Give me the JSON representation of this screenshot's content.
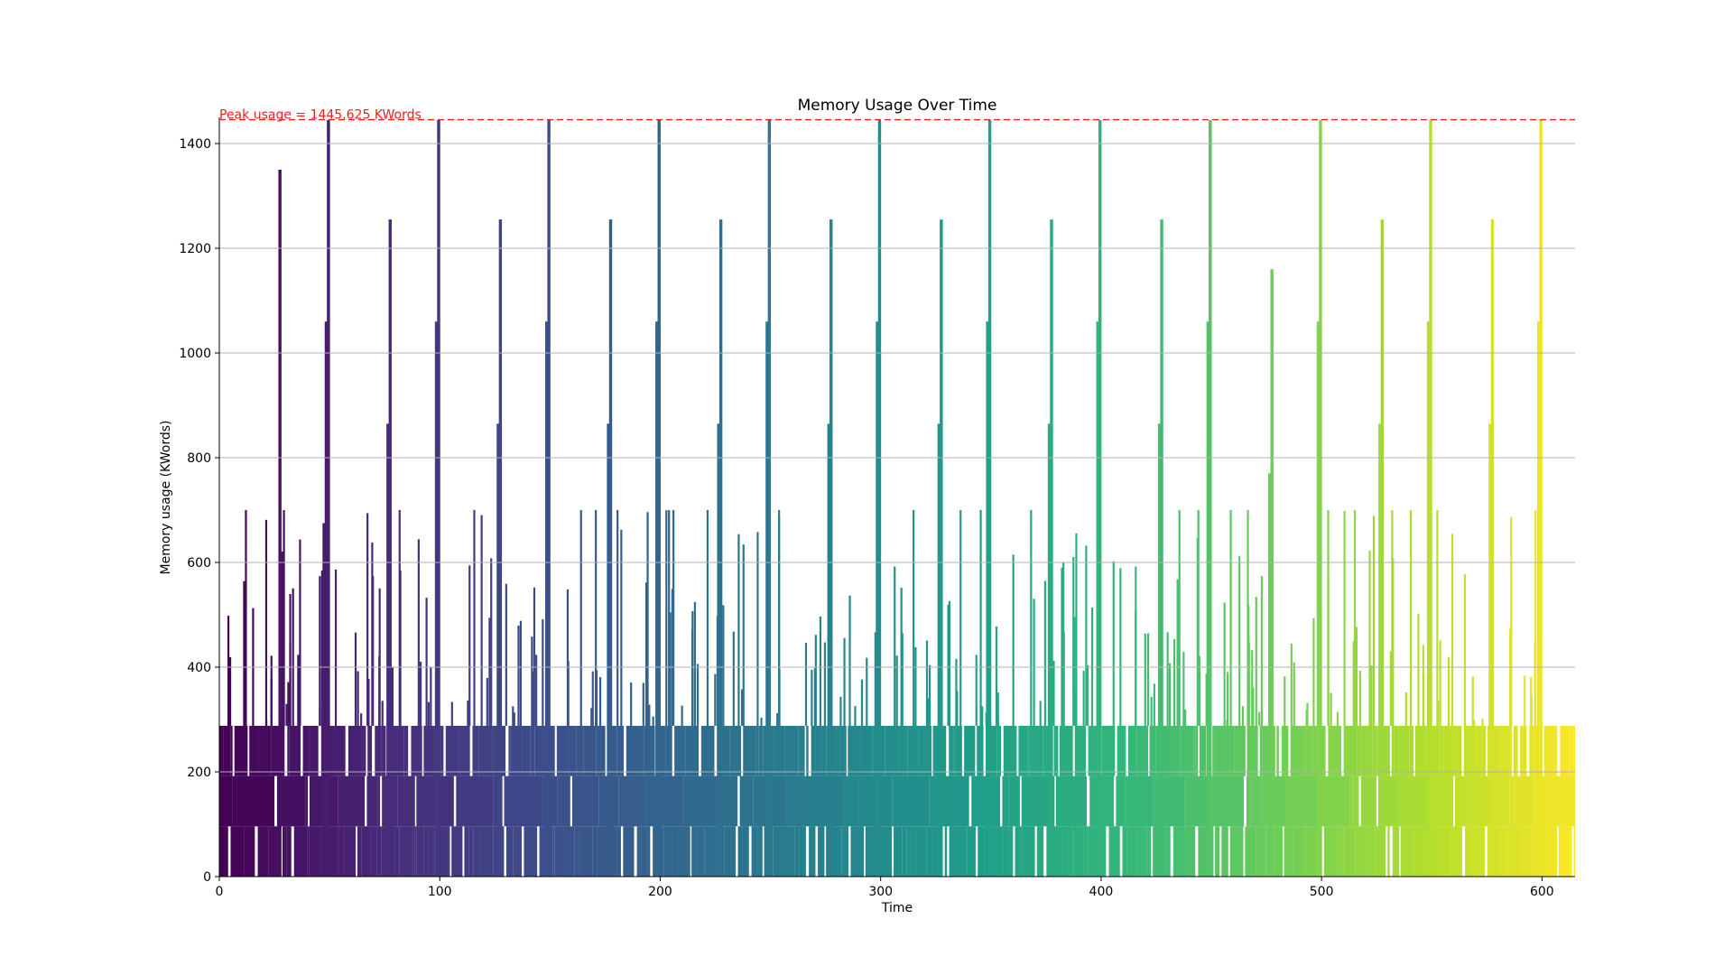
{
  "chart_data": {
    "type": "area",
    "title": "Memory Usage Over Time",
    "xlabel": "Time",
    "ylabel": "Memory usage (KWords)",
    "xlim": [
      0,
      615
    ],
    "ylim": [
      0,
      1450
    ],
    "xticks": [
      0,
      100,
      200,
      300,
      400,
      500,
      600
    ],
    "yticks": [
      0,
      200,
      400,
      600,
      800,
      1000,
      1200,
      1400
    ],
    "grid": "horizontal",
    "colormap": "viridis",
    "colors": {
      "peak_line": "#e8221c",
      "grid": "#b0b0b0",
      "axis": "#000000"
    },
    "peak": {
      "value": 1445.625,
      "label": "Peak usage = 1445.625 KWords"
    },
    "band_levels": [
      0,
      96,
      192,
      288
    ],
    "cycle_period": 50,
    "cycles": [
      {
        "start": 0,
        "spikes": [
          [
            50,
            1445
          ],
          [
            49,
            1060
          ],
          [
            28,
            1350
          ],
          [
            48,
            675
          ]
        ]
      },
      {
        "start": 50,
        "spikes": [
          [
            78,
            1255
          ],
          [
            77,
            865
          ],
          [
            100,
            1445
          ],
          [
            99,
            1060
          ]
        ]
      },
      {
        "start": 100,
        "spikes": [
          [
            128,
            1255
          ],
          [
            127,
            865
          ],
          [
            150,
            1445
          ],
          [
            149,
            1060
          ]
        ]
      },
      {
        "start": 150,
        "spikes": [
          [
            178,
            1255
          ],
          [
            177,
            865
          ],
          [
            200,
            1445
          ],
          [
            199,
            1060
          ]
        ]
      },
      {
        "start": 200,
        "spikes": [
          [
            228,
            1255
          ],
          [
            227,
            865
          ],
          [
            250,
            1445
          ],
          [
            249,
            1060
          ]
        ]
      },
      {
        "start": 250,
        "spikes": [
          [
            278,
            1255
          ],
          [
            277,
            865
          ],
          [
            300,
            1445
          ],
          [
            299,
            1060
          ]
        ]
      },
      {
        "start": 300,
        "spikes": [
          [
            328,
            1255
          ],
          [
            327,
            865
          ],
          [
            350,
            1445
          ],
          [
            349,
            1060
          ]
        ]
      },
      {
        "start": 350,
        "spikes": [
          [
            378,
            1255
          ],
          [
            377,
            865
          ],
          [
            400,
            1445
          ],
          [
            399,
            1060
          ]
        ]
      },
      {
        "start": 400,
        "spikes": [
          [
            428,
            1255
          ],
          [
            427,
            865
          ],
          [
            450,
            1445
          ],
          [
            449,
            1060
          ]
        ]
      },
      {
        "start": 450,
        "spikes": [
          [
            478,
            1160
          ],
          [
            477,
            770
          ],
          [
            500,
            1445
          ],
          [
            499,
            1060
          ]
        ]
      },
      {
        "start": 500,
        "spikes": [
          [
            528,
            1255
          ],
          [
            527,
            865
          ],
          [
            550,
            1445
          ],
          [
            549,
            1060
          ]
        ]
      },
      {
        "start": 550,
        "spikes": [
          [
            578,
            1255
          ],
          [
            577,
            865
          ],
          [
            600,
            1445
          ],
          [
            599,
            1060
          ]
        ]
      }
    ],
    "mid_levels": [
      385,
      480,
      580,
      675,
      770
    ]
  }
}
